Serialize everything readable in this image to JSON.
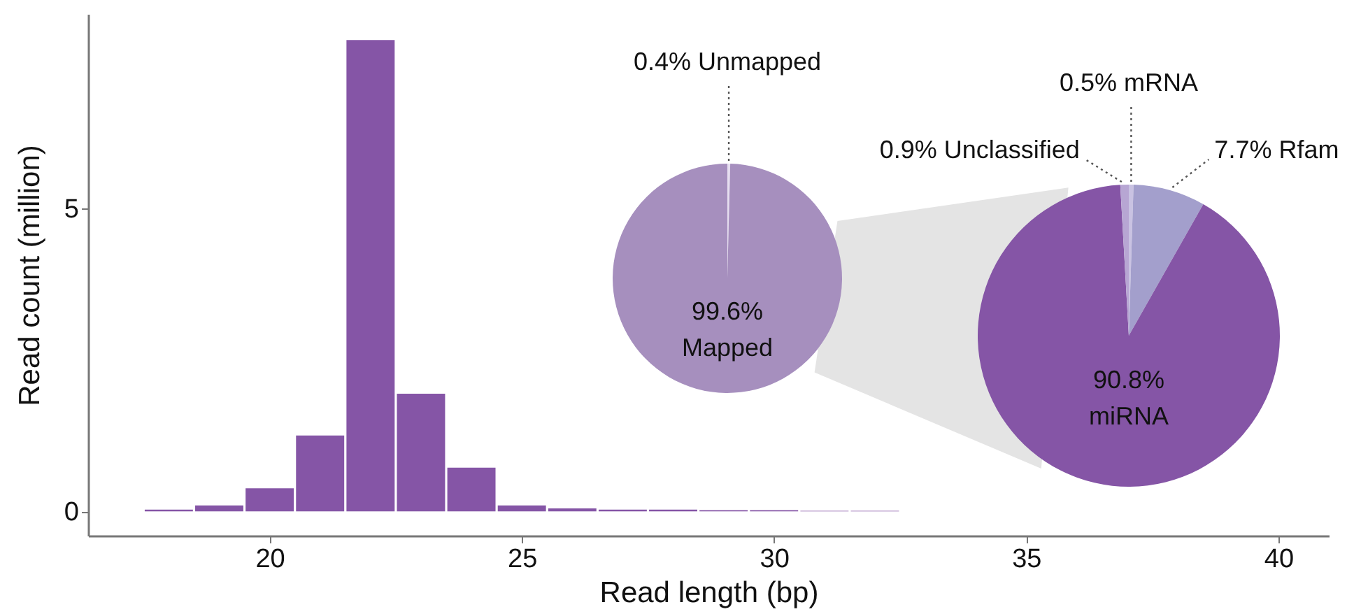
{
  "chart_data": [
    {
      "type": "histogram",
      "xlabel": "Read length (bp)",
      "ylabel": "Read count (million)",
      "bins": [
        17.5,
        18.5,
        19.5,
        20.5,
        21.5,
        22.5,
        23.5,
        24.5,
        25.5,
        26.5,
        27.5,
        28.5,
        29.5,
        30.5,
        31.5,
        32.5
      ],
      "values": [
        0.03,
        0.1,
        0.38,
        1.25,
        7.77,
        1.94,
        0.72,
        0.1,
        0.05,
        0.03,
        0.03,
        0.02,
        0.02,
        0.01,
        0.01
      ],
      "color": "#8555a6",
      "xlim": [
        16.4,
        41
      ],
      "xticks": [
        20,
        25,
        30,
        35,
        40
      ],
      "ylim": [
        -0.4,
        8.2
      ],
      "yticks": [
        0,
        5
      ]
    },
    {
      "type": "pie",
      "categories": [
        "Unmapped",
        "Mapped"
      ],
      "values": [
        0.4,
        99.6
      ],
      "colors": [
        "#e6def0",
        "#a68fbe"
      ],
      "value_labels": [
        "0.4%",
        "99.6%"
      ]
    },
    {
      "type": "pie",
      "categories": [
        "mRNA",
        "Rfam",
        "miRNA",
        "Unclassified"
      ],
      "values": [
        0.5,
        7.7,
        90.8,
        0.9
      ],
      "colors": [
        "#c9c2e2",
        "#a39fcc",
        "#8555a6",
        "#b7a6d3"
      ],
      "value_labels": [
        "0.5%",
        "7.7%",
        "90.8%",
        "0.9%"
      ]
    }
  ]
}
